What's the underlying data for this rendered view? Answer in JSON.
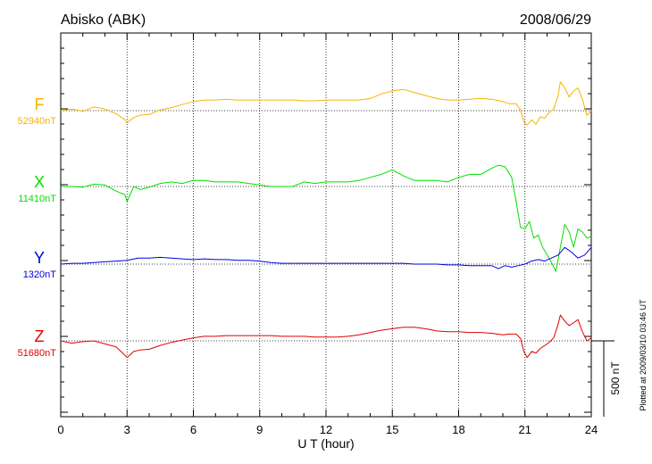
{
  "header": {
    "station": "Abisko (ABK)",
    "date": "2008/06/29",
    "plotted_note": "Plotted at 2009/03/10 03:46 UT"
  },
  "chart_data": {
    "type": "line",
    "xlabel": "U T (hour)",
    "xlim": [
      0,
      24
    ],
    "xticks": [
      "0",
      "3",
      "6",
      "9",
      "12",
      "15",
      "18",
      "21",
      "24"
    ],
    "scale_bar": {
      "label": "500 nT",
      "value_nT": 500
    },
    "grid": true,
    "series": [
      {
        "name": "F",
        "baseline_label": "52940nT",
        "baseline_nT": 52940,
        "color": "#f5b400",
        "x": [
          0,
          0.5,
          1,
          1.5,
          2,
          2.5,
          2.9,
          3,
          3.3,
          3.6,
          4,
          4.5,
          5,
          5.5,
          6,
          6.5,
          7,
          7.5,
          8,
          8.5,
          9,
          9.5,
          10,
          10.5,
          11,
          11.5,
          12,
          12.5,
          13,
          13.5,
          14,
          14.5,
          15,
          15.5,
          16,
          16.5,
          17,
          17.5,
          18,
          18.5,
          19,
          19.5,
          20,
          20.3,
          20.6,
          20.8,
          20.95,
          21.1,
          21.3,
          21.5,
          21.7,
          21.9,
          22.1,
          22.3,
          22.5,
          22.6,
          22.8,
          23.0,
          23.2,
          23.4,
          23.6,
          23.8,
          24
        ],
        "y": [
          0,
          10,
          -5,
          25,
          10,
          -20,
          -60,
          -80,
          -45,
          -30,
          -25,
          5,
          20,
          40,
          60,
          70,
          70,
          75,
          70,
          70,
          70,
          70,
          70,
          70,
          65,
          65,
          70,
          70,
          70,
          70,
          80,
          110,
          130,
          140,
          120,
          100,
          80,
          70,
          70,
          75,
          80,
          75,
          60,
          45,
          45,
          5,
          -75,
          -95,
          -60,
          -90,
          -40,
          -50,
          -10,
          10,
          100,
          190,
          150,
          90,
          130,
          150,
          75,
          -30,
          0
        ]
      },
      {
        "name": "X",
        "baseline_label": "11410nT",
        "baseline_nT": 11410,
        "color": "#00e000",
        "x": [
          0,
          0.5,
          1,
          1.5,
          2,
          2.5,
          2.9,
          3,
          3.3,
          3.6,
          4,
          4.5,
          5,
          5.5,
          6,
          6.5,
          7,
          7.5,
          8,
          8.5,
          9,
          9.5,
          10,
          10.5,
          11,
          11.5,
          12,
          12.5,
          13,
          13.5,
          14,
          14.5,
          15,
          15.5,
          16,
          16.5,
          17,
          17.5,
          18,
          18.5,
          19,
          19.5,
          19.8,
          20.1,
          20.4,
          20.6,
          20.8,
          21.0,
          21.2,
          21.4,
          21.6,
          21.8,
          22.0,
          22.2,
          22.4,
          22.6,
          22.8,
          23.0,
          23.2,
          23.4,
          23.6,
          23.8,
          24
        ],
        "y": [
          0,
          0,
          -5,
          15,
          10,
          -30,
          -55,
          -100,
          0,
          -20,
          -5,
          20,
          30,
          20,
          40,
          40,
          30,
          30,
          30,
          20,
          10,
          0,
          0,
          0,
          30,
          20,
          30,
          30,
          30,
          40,
          60,
          80,
          110,
          70,
          40,
          40,
          40,
          30,
          60,
          80,
          80,
          120,
          140,
          130,
          60,
          -100,
          -270,
          -280,
          -230,
          -340,
          -320,
          -400,
          -450,
          -500,
          -560,
          -400,
          -250,
          -300,
          -400,
          -280,
          -300,
          -340,
          -330
        ]
      },
      {
        "name": "Y",
        "baseline_label": "1320nT",
        "baseline_nT": 1320,
        "color": "#0000e0",
        "x": [
          0,
          0.5,
          1,
          1.5,
          2,
          2.5,
          3,
          3.5,
          4,
          4.5,
          5,
          5.5,
          6,
          6.5,
          7,
          7.5,
          8,
          8.5,
          9,
          9.5,
          10,
          10.5,
          11,
          11.5,
          12,
          12.5,
          13,
          13.5,
          14,
          14.5,
          15,
          15.5,
          16,
          16.5,
          17,
          17.5,
          18,
          18.5,
          19,
          19.5,
          19.8,
          20.1,
          20.4,
          20.7,
          21.0,
          21.3,
          21.6,
          21.9,
          22.2,
          22.5,
          22.8,
          23.1,
          23.4,
          23.7,
          24
        ],
        "y": [
          0,
          5,
          5,
          10,
          15,
          20,
          25,
          40,
          40,
          45,
          40,
          35,
          30,
          35,
          30,
          30,
          25,
          25,
          20,
          10,
          5,
          5,
          5,
          5,
          5,
          5,
          5,
          5,
          5,
          5,
          5,
          5,
          0,
          0,
          0,
          -5,
          -5,
          -10,
          -10,
          -10,
          -30,
          -10,
          -20,
          -10,
          0,
          20,
          30,
          20,
          40,
          60,
          110,
          80,
          40,
          60,
          110
        ]
      },
      {
        "name": "Z",
        "baseline_label": "51680nT",
        "baseline_nT": 51680,
        "color": "#e00000",
        "x": [
          0,
          0.5,
          1,
          1.5,
          2,
          2.5,
          2.8,
          3,
          3.3,
          3.6,
          4,
          4.5,
          5,
          5.5,
          6,
          6.5,
          7,
          7.5,
          8,
          8.5,
          9,
          9.5,
          10,
          10.5,
          11,
          11.5,
          12,
          12.5,
          13,
          13.5,
          14,
          14.5,
          15,
          15.5,
          16,
          16.5,
          17,
          17.5,
          18,
          18.5,
          19,
          19.5,
          20,
          20.3,
          20.6,
          20.8,
          20.95,
          21.1,
          21.3,
          21.5,
          21.7,
          21.9,
          22.1,
          22.3,
          22.5,
          22.6,
          22.8,
          23.0,
          23.2,
          23.4,
          23.6,
          23.8,
          24
        ],
        "y": [
          0,
          -15,
          -5,
          0,
          -20,
          -40,
          -80,
          -110,
          -70,
          -60,
          -55,
          -30,
          -10,
          5,
          20,
          30,
          30,
          35,
          35,
          35,
          35,
          35,
          30,
          30,
          30,
          25,
          25,
          25,
          30,
          40,
          55,
          70,
          80,
          90,
          90,
          80,
          65,
          60,
          60,
          55,
          55,
          50,
          40,
          45,
          45,
          15,
          -70,
          -110,
          -70,
          -80,
          -50,
          -30,
          -10,
          20,
          110,
          170,
          130,
          100,
          120,
          140,
          60,
          0,
          20
        ]
      }
    ]
  }
}
